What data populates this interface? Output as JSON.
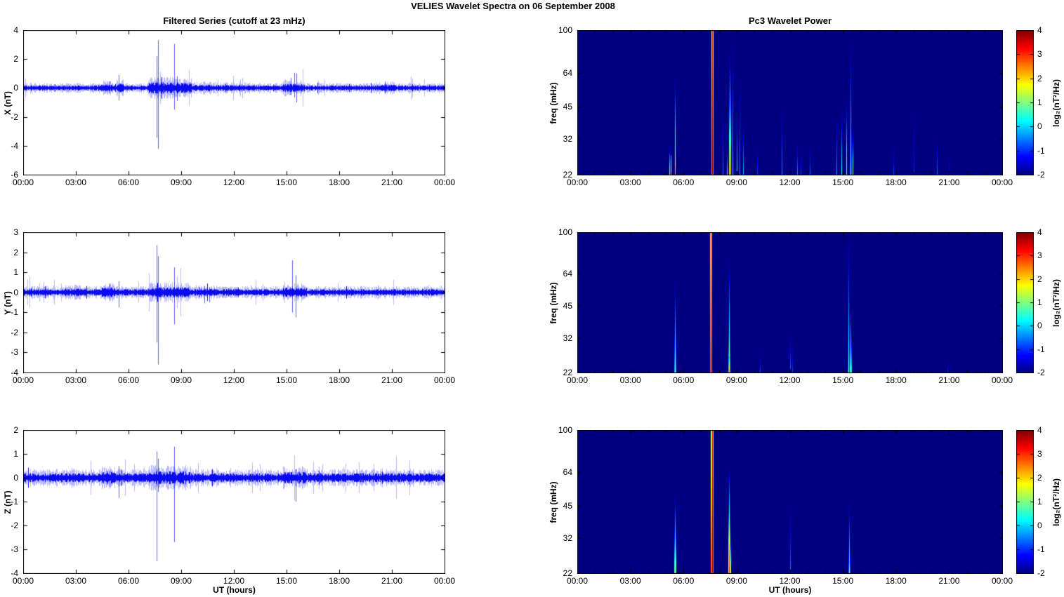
{
  "figure_title": "VELIES Wavelet Spectra on 06 September 2008",
  "time_ticks": [
    "00:00",
    "03:00",
    "06:00",
    "09:00",
    "12:00",
    "15:00",
    "18:00",
    "21:00",
    "00:00"
  ],
  "colors": {
    "series_line": "#0000EE",
    "frame": "#000000",
    "spectrogram_background_min": "#000080",
    "background": "#FFFFFF"
  },
  "chart_data": [
    {
      "id": "timeseries-x",
      "type": "line",
      "title": "Filtered Series (cutoff at 23 mHz)",
      "ylabel": "X (nT)",
      "ylim": [
        -6,
        4
      ],
      "yticks": [
        -6,
        -4,
        -2,
        0,
        2,
        4
      ],
      "x_hours": [
        0,
        24
      ],
      "xtick_hours": [
        0,
        3,
        6,
        9,
        12,
        15,
        18,
        21,
        24
      ],
      "noise_amp": 0.12,
      "noise_bursts": [
        [
          4.4,
          5.1,
          1.5
        ],
        [
          5.3,
          5.7,
          1.7
        ],
        [
          7.1,
          9.6,
          2.2
        ],
        [
          9.6,
          11.0,
          1.3
        ],
        [
          11.0,
          12.9,
          1.2
        ],
        [
          14.8,
          16.0,
          1.7
        ],
        [
          20.2,
          21.2,
          1.35
        ]
      ],
      "spikes": [
        [
          4.9,
          0.45,
          -0.35
        ],
        [
          5.45,
          0.9,
          -0.85
        ],
        [
          7.58,
          2.2,
          -3.45
        ],
        [
          7.66,
          3.3,
          -4.2
        ],
        [
          8.6,
          3.05,
          -1.5
        ],
        [
          8.75,
          0.8,
          -0.9
        ],
        [
          15.25,
          0.7,
          -0.5
        ],
        [
          15.42,
          1.05,
          -0.65
        ],
        [
          15.55,
          1.0,
          -1.0
        ],
        [
          20.6,
          0.45,
          -0.4
        ]
      ]
    },
    {
      "id": "timeseries-y",
      "type": "line",
      "ylabel": "Y (nT)",
      "ylim": [
        -4,
        3
      ],
      "yticks": [
        -4,
        -3,
        -2,
        -1,
        0,
        1,
        2,
        3
      ],
      "x_hours": [
        0,
        24
      ],
      "xtick_hours": [
        0,
        3,
        6,
        9,
        12,
        15,
        18,
        21,
        24
      ],
      "noise_amp": 0.11,
      "noise_bursts": [
        [
          2.4,
          3.3,
          1.25
        ],
        [
          4.4,
          5.2,
          1.6
        ],
        [
          7.1,
          9.5,
          1.6
        ],
        [
          9.8,
          11.0,
          1.2
        ],
        [
          14.8,
          16.0,
          1.5
        ]
      ],
      "spikes": [
        [
          4.9,
          0.4,
          -0.3
        ],
        [
          5.45,
          0.55,
          -0.75
        ],
        [
          7.6,
          2.35,
          -2.5
        ],
        [
          7.66,
          1.8,
          -3.6
        ],
        [
          8.6,
          1.25,
          -1.6
        ],
        [
          10.3,
          0.3,
          -0.55
        ],
        [
          10.6,
          0.25,
          -0.5
        ],
        [
          15.3,
          1.6,
          -1.0
        ],
        [
          15.5,
          0.85,
          -1.25
        ]
      ]
    },
    {
      "id": "timeseries-z",
      "type": "line",
      "ylabel": "Z (nT)",
      "xlabel": "UT (hours)",
      "ylim": [
        -4,
        2
      ],
      "yticks": [
        -4,
        -3,
        -2,
        -1,
        0,
        1,
        2
      ],
      "x_hours": [
        0,
        24
      ],
      "xtick_hours": [
        0,
        3,
        6,
        9,
        12,
        15,
        18,
        21,
        24
      ],
      "noise_amp": 0.13,
      "noise_bursts": [
        [
          4.4,
          5.2,
          1.3
        ],
        [
          7.1,
          9.5,
          1.45
        ],
        [
          14.8,
          16.0,
          1.3
        ]
      ],
      "spikes": [
        [
          4.9,
          0.3,
          -0.4
        ],
        [
          5.45,
          0.5,
          -0.85
        ],
        [
          7.58,
          1.1,
          -3.5
        ],
        [
          7.66,
          0.8,
          -0.6
        ],
        [
          8.62,
          1.3,
          -2.7
        ],
        [
          15.5,
          0.35,
          -1.0
        ]
      ]
    },
    {
      "id": "spectrogram-x",
      "type": "heatmap",
      "title": "Pc3 Wavelet Power",
      "ylabel": "freq (mHz)",
      "freq_lim": [
        22,
        100
      ],
      "yticks": [
        22,
        32,
        45,
        64,
        100
      ],
      "x_hours": [
        0,
        24
      ],
      "xtick_hours": [
        0,
        3,
        6,
        9,
        12,
        15,
        18,
        21,
        24
      ],
      "clim": [
        -2,
        4
      ],
      "colorbar_ticks": [
        -2,
        -1,
        0,
        1,
        2,
        3,
        4
      ],
      "colorbar_label": "log₂(nT²/Hz)",
      "events": [
        [
          5.2,
          30,
          1.2,
          -2,
          0
        ],
        [
          5.28,
          27,
          2.3,
          -0.5,
          0
        ],
        [
          5.5,
          62,
          2.2,
          -2,
          0
        ],
        [
          7.56,
          28,
          2.0,
          -2,
          0
        ],
        [
          7.62,
          100,
          4.2,
          3.2,
          1
        ],
        [
          8.2,
          45,
          -0.5,
          -2,
          0
        ],
        [
          8.45,
          30,
          0.5,
          -2,
          0
        ],
        [
          8.6,
          80,
          3.4,
          -2,
          1
        ],
        [
          8.75,
          100,
          0.0,
          -2,
          1
        ],
        [
          9.0,
          45,
          0.3,
          -2,
          0
        ],
        [
          9.15,
          62,
          -0.3,
          -2,
          0
        ],
        [
          9.35,
          40,
          0.0,
          -2,
          0
        ],
        [
          10.15,
          30,
          -0.8,
          -2,
          0
        ],
        [
          11.55,
          45,
          -0.3,
          -2,
          1
        ],
        [
          12.4,
          32,
          -0.3,
          -2,
          0
        ],
        [
          12.6,
          28,
          -0.8,
          -2,
          0
        ],
        [
          13.15,
          30,
          -0.6,
          -2,
          0
        ],
        [
          14.65,
          42,
          -0.2,
          -2,
          1
        ],
        [
          14.9,
          45,
          0.5,
          -2,
          0
        ],
        [
          15.2,
          50,
          1.2,
          -2,
          0
        ],
        [
          15.45,
          92,
          0.8,
          -2,
          1
        ],
        [
          15.55,
          35,
          1.4,
          -2,
          0
        ],
        [
          17.85,
          30,
          -0.8,
          -2,
          0
        ],
        [
          19.0,
          45,
          -1.0,
          -2,
          0
        ],
        [
          20.3,
          33,
          -0.5,
          -2,
          0
        ],
        [
          21.0,
          26,
          -1.0,
          -2,
          0
        ]
      ]
    },
    {
      "id": "spectrogram-y",
      "type": "heatmap",
      "ylabel": "freq (mHz)",
      "freq_lim": [
        22,
        100
      ],
      "yticks": [
        22,
        32,
        45,
        64,
        100
      ],
      "x_hours": [
        0,
        24
      ],
      "xtick_hours": [
        0,
        3,
        6,
        9,
        12,
        15,
        18,
        21,
        24
      ],
      "clim": [
        -2,
        4
      ],
      "colorbar_ticks": [
        -2,
        -1,
        0,
        1,
        2,
        3,
        4
      ],
      "colorbar_label": "log₂(nT²/Hz)",
      "events": [
        [
          5.5,
          62,
          1.3,
          -2,
          1
        ],
        [
          7.5,
          28,
          2.0,
          -2,
          0
        ],
        [
          7.55,
          100,
          4.2,
          3.2,
          1
        ],
        [
          8.55,
          78,
          1.6,
          -2,
          1
        ],
        [
          8.55,
          26,
          2.6,
          0,
          0
        ],
        [
          10.3,
          28,
          -0.8,
          -2,
          0
        ],
        [
          12.0,
          34,
          -0.5,
          -2,
          0
        ],
        [
          12.15,
          30,
          -0.8,
          -2,
          0
        ],
        [
          15.3,
          100,
          0.8,
          -2,
          1
        ],
        [
          15.42,
          45,
          1.8,
          -2,
          1
        ],
        [
          15.42,
          25,
          2.4,
          0.5,
          0
        ],
        [
          20.9,
          25,
          -1.0,
          -2,
          0
        ]
      ]
    },
    {
      "id": "spectrogram-z",
      "type": "heatmap",
      "ylabel": "freq (mHz)",
      "xlabel": "UT (hours)",
      "freq_lim": [
        22,
        100
      ],
      "yticks": [
        22,
        32,
        45,
        64,
        100
      ],
      "x_hours": [
        0,
        24
      ],
      "xtick_hours": [
        0,
        3,
        6,
        9,
        12,
        15,
        18,
        21,
        24
      ],
      "clim": [
        -2,
        4
      ],
      "colorbar_ticks": [
        -2,
        -1,
        0,
        1,
        2,
        3,
        4
      ],
      "colorbar_label": "log₂(nT²/Hz)",
      "events": [
        [
          5.5,
          52,
          2.3,
          -2,
          1
        ],
        [
          7.52,
          100,
          3.0,
          1.0,
          0
        ],
        [
          7.6,
          100,
          4.2,
          3.4,
          1
        ],
        [
          8.55,
          70,
          3.4,
          -2,
          1
        ],
        [
          8.65,
          32,
          1.5,
          -2,
          0
        ],
        [
          12.0,
          46,
          -0.4,
          -2,
          1
        ],
        [
          15.35,
          48,
          0.9,
          -2,
          1
        ],
        [
          15.35,
          25,
          1.6,
          0,
          0
        ]
      ]
    }
  ]
}
